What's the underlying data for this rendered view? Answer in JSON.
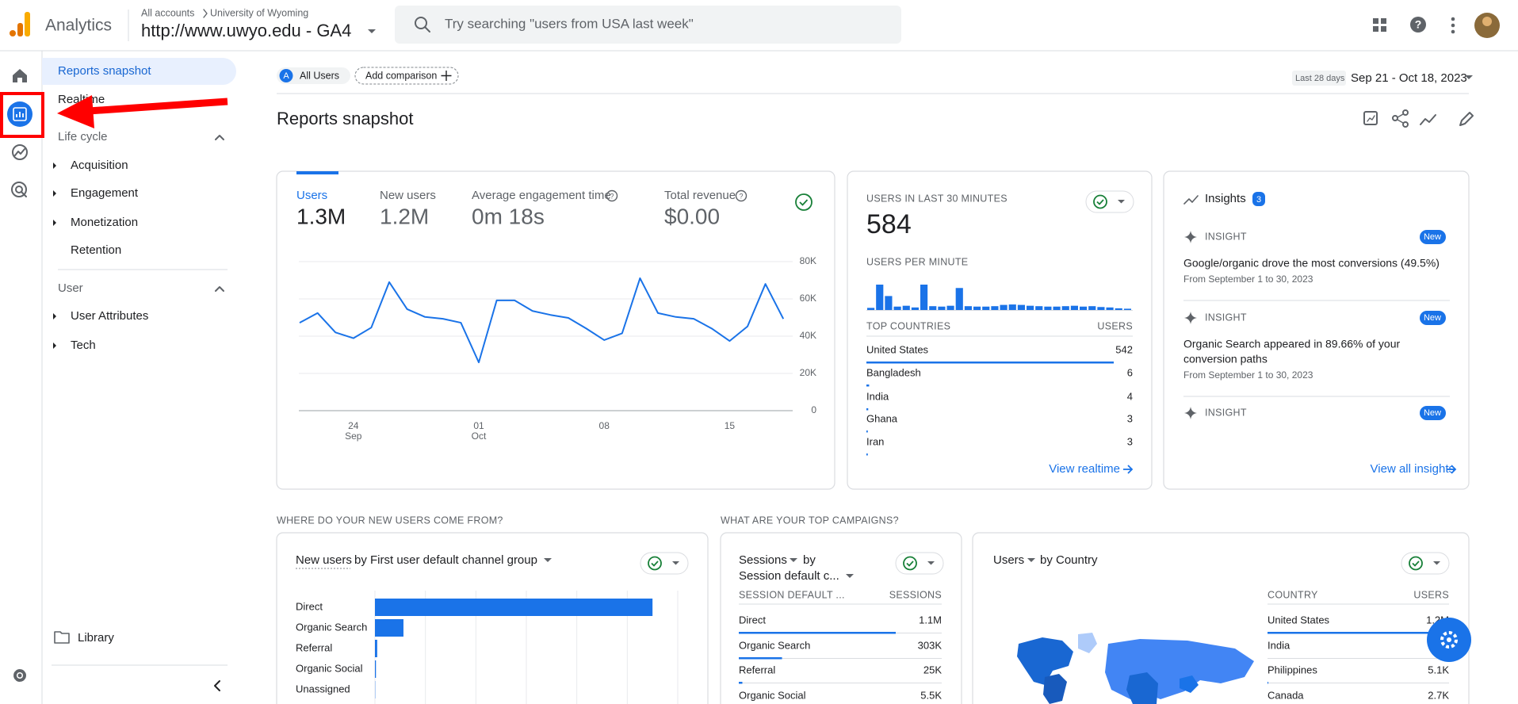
{
  "header": {
    "product": "Analytics",
    "breadcrumb_root": "All accounts",
    "breadcrumb_account": "University of Wyoming",
    "property": "http://www.uwyo.edu - GA4",
    "search_placeholder": "Try searching \"users from USA last week\""
  },
  "nav": {
    "items": [
      "Reports snapshot",
      "Realtime"
    ],
    "sections": [
      {
        "title": "Life cycle",
        "items": [
          "Acquisition",
          "Engagement",
          "Monetization",
          "Retention"
        ]
      },
      {
        "title": "User",
        "items": [
          "User Attributes",
          "Tech"
        ]
      }
    ],
    "library": "Library"
  },
  "toolbar": {
    "segment_badge": "A",
    "segment": "All Users",
    "add_comparison": "Add comparison",
    "date_range_label": "Last 28 days",
    "date_range": "Sep 21 - Oct 18, 2023"
  },
  "page_title": "Reports snapshot",
  "overview": {
    "metrics": [
      {
        "name": "Users",
        "value": "1.3M"
      },
      {
        "name": "New users",
        "value": "1.2M"
      },
      {
        "name": "Average engagement time",
        "value": "0m 18s"
      },
      {
        "name": "Total revenue",
        "value": "$0.00"
      }
    ],
    "chart": {
      "type": "line",
      "color": "#1a73e8",
      "categories": [
        null,
        null,
        null,
        "24",
        null,
        null,
        null,
        null,
        null,
        null,
        "01",
        null,
        null,
        null,
        null,
        null,
        null,
        "08",
        null,
        null,
        null,
        null,
        null,
        null,
        "15",
        null,
        null,
        null
      ],
      "month_labels": [
        null,
        null,
        null,
        "Sep",
        null,
        null,
        null,
        null,
        null,
        null,
        "Oct",
        null,
        null,
        null,
        null,
        null,
        null,
        null,
        null,
        null,
        null,
        null,
        null,
        null,
        null,
        null,
        null,
        null
      ],
      "values": [
        47200,
        52400,
        42000,
        38900,
        44600,
        69000,
        54500,
        50300,
        49300,
        47200,
        25900,
        59200,
        59200,
        53500,
        51400,
        49800,
        44100,
        37900,
        41500,
        71100,
        52400,
        50300,
        49300,
        44100,
        37400,
        45200,
        68000,
        49300
      ],
      "ylim": [
        0,
        80000
      ],
      "yticks": [
        0,
        {
          "value": 20000,
          "label": "20K"
        },
        {
          "value": 40000,
          "label": "40K"
        },
        {
          "value": 60000,
          "label": "60K"
        },
        {
          "value": 80000,
          "label": "80K"
        }
      ]
    }
  },
  "realtime": {
    "title": "USERS IN LAST 30 MINUTES",
    "value": 584,
    "per_minute_label": "USERS PER MINUTE",
    "per_minute": {
      "type": "bar",
      "color": "#1a73e8",
      "values": [
        5,
        60,
        33,
        8,
        10,
        6,
        60,
        9,
        8,
        10,
        52,
        9,
        8,
        8,
        9,
        12,
        13,
        12,
        10,
        9,
        8,
        8,
        9,
        10,
        8,
        9,
        7,
        6,
        4,
        3
      ]
    },
    "countries_header": "TOP COUNTRIES",
    "users_header": "USERS",
    "countries": [
      "United States",
      "Bangladesh",
      "India",
      "Ghana",
      "Iran"
    ],
    "users": [
      542,
      6,
      4,
      3,
      3
    ],
    "link": "View realtime"
  },
  "insights": {
    "title": "Insights",
    "count": 3,
    "items": [
      {
        "label": "INSIGHT",
        "badge": "New",
        "lines": [
          "Google/organic drove the most conversions (49.5%)"
        ],
        "date": "From September 1 to 30, 2023"
      },
      {
        "label": "INSIGHT",
        "badge": "New",
        "lines": [
          "Organic Search appeared in 89.66% of your",
          "conversion paths"
        ],
        "date": "From September 1 to 30, 2023"
      },
      {
        "label": "INSIGHT",
        "badge": "New"
      }
    ],
    "link": "View all insights"
  },
  "new_users": {
    "section_title": "WHERE DO YOUR NEW USERS COME FROM?",
    "metric": "New users",
    "by": "by First user default channel group",
    "chart": {
      "type": "bar",
      "color": "#1a73e8",
      "categories": [
        "Direct",
        "Organic Search",
        "Referral",
        "Organic Social",
        "Unassigned"
      ],
      "values": [
        1100000,
        113000,
        9000,
        4000,
        1000
      ],
      "xlim": [
        0,
        1200000
      ],
      "xticks": [
        0,
        200000,
        400000,
        600000,
        800000,
        1000000,
        1200000
      ]
    }
  },
  "campaigns": {
    "section_title": "WHAT ARE YOUR TOP CAMPAIGNS?",
    "metric": "Sessions",
    "by": "by",
    "dimension": "Session default c...",
    "col1": "SESSION DEFAULT ...",
    "col2": "SESSIONS",
    "categories": [
      "Direct",
      "Organic Search",
      "Referral",
      "Organic Social"
    ],
    "values": [
      1100000,
      303000,
      25000,
      5500
    ],
    "value_labels": [
      "1.1M",
      "303K",
      "25K",
      "5.5K"
    ]
  },
  "countries_card": {
    "metric": "Users",
    "by": "by Country",
    "col1": "COUNTRY",
    "col2": "USERS",
    "categories": [
      "United States",
      "India",
      "Philippines",
      "Canada"
    ],
    "values": [
      1200000,
      null,
      5100,
      2700
    ],
    "value_labels": [
      "1.2M",
      null,
      "5.1K",
      "2.7K"
    ]
  }
}
